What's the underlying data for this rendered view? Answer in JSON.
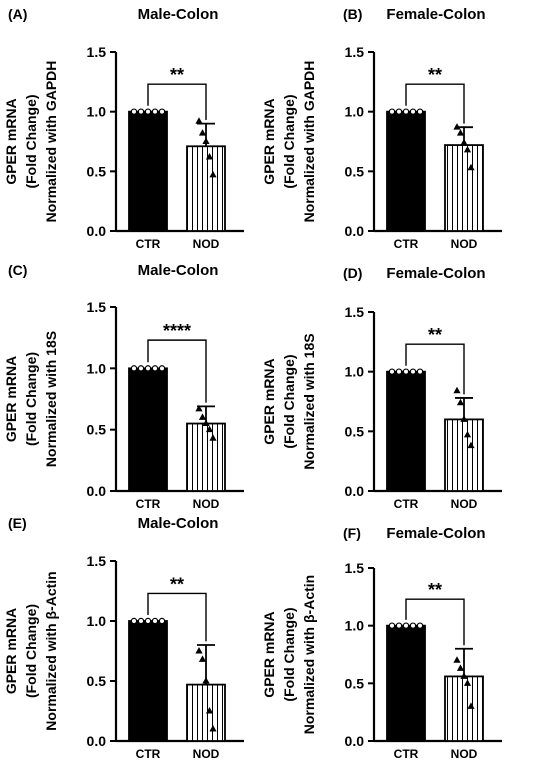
{
  "colors": {
    "ctr_fill": "#000000",
    "nod_fill": "#ffffff",
    "stroke": "#000000"
  },
  "chart_data": [
    {
      "type": "bar",
      "panel": "(A)",
      "title": "Male-Colon",
      "ylabel": [
        "GPER mRNA",
        "(Fold Change)",
        "Normalized with GAPDH"
      ],
      "ylim": [
        0,
        1.5
      ],
      "yticks": [
        "0.0",
        "0.5",
        "1.0",
        "1.5"
      ],
      "categories": [
        "CTR",
        "NOD"
      ],
      "values": [
        1.0,
        0.71
      ],
      "errors": [
        0,
        0.19
      ],
      "points": [
        [
          1,
          1,
          1,
          1,
          1
        ],
        [
          0.92,
          0.82,
          0.75,
          0.62,
          0.47
        ]
      ],
      "significance": "**"
    },
    {
      "type": "bar",
      "panel": "(B)",
      "title": "Female-Colon",
      "ylabel": [
        "GPER mRNA",
        "(Fold Change)",
        "Normalized with GAPDH"
      ],
      "ylim": [
        0,
        1.5
      ],
      "yticks": [
        "0.0",
        "0.5",
        "1.0",
        "1.5"
      ],
      "categories": [
        "CTR",
        "NOD"
      ],
      "values": [
        1.0,
        0.72
      ],
      "errors": [
        0,
        0.15
      ],
      "points": [
        [
          1,
          1,
          1,
          1,
          1
        ],
        [
          0.87,
          0.82,
          0.74,
          0.68,
          0.53
        ]
      ],
      "significance": "**"
    },
    {
      "type": "bar",
      "panel": "(C)",
      "title": "Male-Colon",
      "ylabel": [
        "GPER mRNA",
        "(Fold Change)",
        "Normalized with 18S"
      ],
      "ylim": [
        0,
        1.5
      ],
      "yticks": [
        "0.0",
        "0.5",
        "1.0",
        "1.5"
      ],
      "categories": [
        "CTR",
        "NOD"
      ],
      "values": [
        1.0,
        0.55
      ],
      "errors": [
        0,
        0.14
      ],
      "points": [
        [
          1,
          1,
          1,
          1,
          1
        ],
        [
          0.67,
          0.6,
          0.55,
          0.5,
          0.43
        ]
      ],
      "significance": "****"
    },
    {
      "type": "bar",
      "panel": "(D)",
      "title": "Female-Colon",
      "ylabel": [
        "GPER mRNA",
        "(Fold Change)",
        "Normalized with 18S"
      ],
      "ylim": [
        0,
        1.5
      ],
      "yticks": [
        "0.0",
        "0.5",
        "1.0",
        "1.5"
      ],
      "categories": [
        "CTR",
        "NOD"
      ],
      "values": [
        1.0,
        0.6
      ],
      "errors": [
        0,
        0.18
      ],
      "points": [
        [
          1,
          1,
          1,
          1,
          1
        ],
        [
          0.84,
          0.74,
          0.6,
          0.47,
          0.38
        ]
      ],
      "significance": "**"
    },
    {
      "type": "bar",
      "panel": "(E)",
      "title": "Male-Colon",
      "ylabel": [
        "GPER mRNA",
        "(Fold Change)",
        "Normalized with β-Actin"
      ],
      "ylim": [
        0,
        1.5
      ],
      "yticks": [
        "0.0",
        "0.5",
        "1.0",
        "1.5"
      ],
      "categories": [
        "CTR",
        "NOD"
      ],
      "values": [
        1.0,
        0.47
      ],
      "errors": [
        0,
        0.33
      ],
      "points": [
        [
          1,
          1,
          1,
          1,
          1
        ],
        [
          0.75,
          0.68,
          0.5,
          0.25,
          0.1
        ]
      ],
      "significance": "**"
    },
    {
      "type": "bar",
      "panel": "(F)",
      "title": "Female-Colon",
      "ylabel": [
        "GPER mRNA",
        "(Fold Change)",
        "Normalized with β-Actin"
      ],
      "ylim": [
        0,
        1.5
      ],
      "yticks": [
        "0.0",
        "0.5",
        "1.0",
        "1.5"
      ],
      "categories": [
        "CTR",
        "NOD"
      ],
      "values": [
        1.0,
        0.56
      ],
      "errors": [
        0,
        0.24
      ],
      "points": [
        [
          1,
          1,
          1,
          1,
          1
        ],
        [
          0.7,
          0.63,
          0.56,
          0.5,
          0.3
        ]
      ],
      "significance": "**"
    }
  ]
}
